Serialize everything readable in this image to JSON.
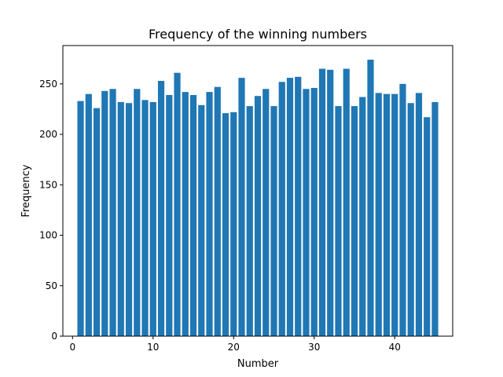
{
  "chart_data": {
    "type": "bar",
    "title": "Frequency of the winning numbers",
    "xlabel": "Number",
    "ylabel": "Frequency",
    "xlim": [
      -1.2,
      47.2
    ],
    "ylim": [
      0,
      288
    ],
    "xticks": [
      0,
      10,
      20,
      30,
      40
    ],
    "yticks": [
      0,
      50,
      100,
      150,
      200,
      250
    ],
    "grid": false,
    "bar_color": "#1f77b4",
    "x": [
      1,
      2,
      3,
      4,
      5,
      6,
      7,
      8,
      9,
      10,
      11,
      12,
      13,
      14,
      15,
      16,
      17,
      18,
      19,
      20,
      21,
      22,
      23,
      24,
      25,
      26,
      27,
      28,
      29,
      30,
      31,
      32,
      33,
      34,
      35,
      36,
      37,
      38,
      39,
      40,
      41,
      42,
      43,
      44,
      45
    ],
    "values": [
      233,
      240,
      226,
      243,
      245,
      232,
      231,
      245,
      234,
      232,
      253,
      239,
      261,
      242,
      239,
      229,
      242,
      247,
      221,
      222,
      256,
      228,
      238,
      245,
      228,
      252,
      256,
      257,
      245,
      246,
      265,
      264,
      228,
      265,
      228,
      237,
      274,
      241,
      240,
      240,
      250,
      231,
      241,
      217,
      232
    ]
  }
}
